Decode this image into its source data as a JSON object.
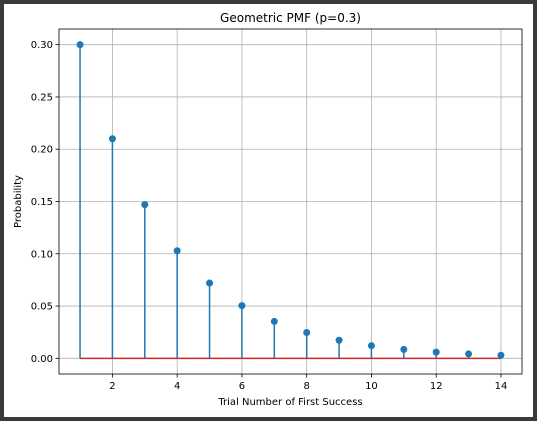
{
  "chart_data": {
    "type": "stem",
    "title": "Geometric PMF (p=0.3)",
    "xlabel": "Trial Number of First Success",
    "ylabel": "Probability",
    "x": [
      1,
      2,
      3,
      4,
      5,
      6,
      7,
      8,
      9,
      10,
      11,
      12,
      13,
      14
    ],
    "values": [
      0.3,
      0.21,
      0.147,
      0.1029,
      0.072,
      0.0504,
      0.0353,
      0.0247,
      0.0173,
      0.0121,
      0.0085,
      0.0059,
      0.0042,
      0.0029
    ],
    "xlim": [
      0.35,
      14.65
    ],
    "ylim": [
      -0.015,
      0.315
    ],
    "xticks": [
      2,
      4,
      6,
      8,
      10,
      12,
      14
    ],
    "xtick_labels": [
      "2",
      "4",
      "6",
      "8",
      "10",
      "12",
      "14"
    ],
    "yticks": [
      0.0,
      0.05,
      0.1,
      0.15,
      0.2,
      0.25,
      0.3
    ],
    "ytick_labels": [
      "0.00",
      "0.05",
      "0.10",
      "0.15",
      "0.20",
      "0.25",
      "0.30"
    ],
    "grid": true,
    "colors": {
      "stem": "#1f77b4",
      "marker": "#1f77b4",
      "baseline": "#d62728",
      "grid": "#b0b0b0"
    }
  }
}
